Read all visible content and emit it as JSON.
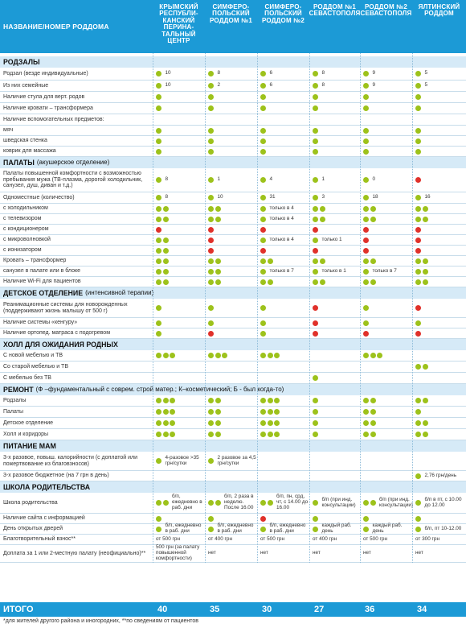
{
  "header": {
    "label": "НАЗВАНИЕ/НОМЕР РОДДОМА",
    "hospitals": [
      "КРЫМСКИЙ РЕСПУБЛИ-КАНСКИЙ ПЕРИНА-ТАЛЬНЫЙ ЦЕНТР",
      "СИМФЕРО-ПОЛЬСКИЙ РОДДОМ №1",
      "СИМФЕРО-ПОЛЬСКИЙ РОДДОМ №2",
      "РОДДОМ №1 СЕВАСТОПОЛЯ",
      "РОДДОМ №2 СЕВАСТОПОЛЯ",
      "ЯЛТИНСКИЙ РОДДОМ"
    ]
  },
  "legend_colors": {
    "yes": "#9dc21b",
    "no": "#e0312a",
    "accent": "#1c9ad6",
    "section_bg": "#d6eaf7"
  },
  "sections": [
    {
      "title": "РОДЗАЛЫ",
      "sub": "",
      "rows": [
        {
          "label": "Родзал (везде индивидуальные)",
          "cells": [
            [
              "g",
              "10"
            ],
            [
              "g",
              "8"
            ],
            [
              "g",
              "6"
            ],
            [
              "g",
              "8"
            ],
            [
              "g",
              "9"
            ],
            [
              "g",
              "5"
            ]
          ]
        },
        {
          "label": "Из них семейные",
          "cells": [
            [
              "g",
              "10"
            ],
            [
              "g",
              "2"
            ],
            [
              "g",
              "6"
            ],
            [
              "g",
              "8"
            ],
            [
              "g",
              "9"
            ],
            [
              "g",
              "5"
            ]
          ]
        },
        {
          "label": "Наличие стула для верт. родов",
          "cells": [
            [
              "g",
              ""
            ],
            [
              "g",
              ""
            ],
            [
              "g",
              ""
            ],
            [
              "g",
              ""
            ],
            [
              "g",
              ""
            ],
            [
              "g",
              ""
            ]
          ]
        },
        {
          "label": "Наличие кровати – трансформера",
          "cells": [
            [
              "g",
              ""
            ],
            [
              "g",
              ""
            ],
            [
              "g",
              ""
            ],
            [
              "g",
              ""
            ],
            [
              "g",
              ""
            ],
            [
              "g",
              ""
            ]
          ]
        },
        {
          "label": "Наличие вспомогательных предметов:",
          "cells": [
            [
              "",
              ""
            ],
            [
              "",
              ""
            ],
            [
              "",
              ""
            ],
            [
              "",
              ""
            ],
            [
              "",
              ""
            ],
            [
              "",
              ""
            ]
          ]
        },
        {
          "label": "мяч",
          "cells": [
            [
              "g",
              ""
            ],
            [
              "g",
              ""
            ],
            [
              "g",
              ""
            ],
            [
              "g",
              ""
            ],
            [
              "g",
              ""
            ],
            [
              "g",
              ""
            ]
          ]
        },
        {
          "label": "шведская стенка",
          "cells": [
            [
              "g",
              ""
            ],
            [
              "g",
              ""
            ],
            [
              "g",
              ""
            ],
            [
              "g",
              ""
            ],
            [
              "g",
              ""
            ],
            [
              "g",
              ""
            ]
          ]
        },
        {
          "label": "коврик для массажа",
          "cells": [
            [
              "g",
              ""
            ],
            [
              "g",
              ""
            ],
            [
              "g",
              ""
            ],
            [
              "g",
              ""
            ],
            [
              "g",
              ""
            ],
            [
              "g",
              ""
            ]
          ]
        }
      ]
    },
    {
      "title": "ПАЛАТЫ",
      "sub": "(акушерское отделение)",
      "rows": [
        {
          "label": "Палаты повышенной комфортности с возможностью пребывания мужа (ТВ-плазма, дорогой холодильник, санузел, душ, диван и т.д.)",
          "cells": [
            [
              "g",
              "8"
            ],
            [
              "g",
              "1"
            ],
            [
              "g",
              "4"
            ],
            [
              "g",
              "1"
            ],
            [
              "g",
              "0"
            ],
            [
              "r",
              ""
            ]
          ]
        },
        {
          "label": "Одноместные (количество)",
          "cells": [
            [
              "g",
              "8"
            ],
            [
              "g",
              "10"
            ],
            [
              "g",
              "31"
            ],
            [
              "g",
              "3"
            ],
            [
              "g",
              "18"
            ],
            [
              "g",
              "16"
            ]
          ]
        },
        {
          "label": "с холодильником",
          "cells": [
            [
              "gg",
              ""
            ],
            [
              "gg",
              ""
            ],
            [
              "g",
              "только в 4"
            ],
            [
              "gg",
              ""
            ],
            [
              "gg",
              ""
            ],
            [
              "gg",
              ""
            ]
          ]
        },
        {
          "label": "с телевизором",
          "cells": [
            [
              "gg",
              ""
            ],
            [
              "gg",
              ""
            ],
            [
              "g",
              "только в 4"
            ],
            [
              "gg",
              ""
            ],
            [
              "gg",
              ""
            ],
            [
              "gg",
              ""
            ]
          ]
        },
        {
          "label": "с кондиционером",
          "cells": [
            [
              "r",
              ""
            ],
            [
              "r",
              ""
            ],
            [
              "r",
              ""
            ],
            [
              "r",
              ""
            ],
            [
              "r",
              ""
            ],
            [
              "r",
              ""
            ]
          ]
        },
        {
          "label": "с микроволновкой",
          "cells": [
            [
              "gg",
              ""
            ],
            [
              "r",
              ""
            ],
            [
              "g",
              "только в 4"
            ],
            [
              "g",
              "только 1"
            ],
            [
              "r",
              ""
            ],
            [
              "r",
              ""
            ]
          ]
        },
        {
          "label": "с ионизатором",
          "cells": [
            [
              "gg",
              ""
            ],
            [
              "r",
              ""
            ],
            [
              "r",
              ""
            ],
            [
              "r",
              ""
            ],
            [
              "r",
              ""
            ],
            [
              "r",
              ""
            ]
          ]
        },
        {
          "label": "Кровать – трансформер",
          "cells": [
            [
              "gg",
              ""
            ],
            [
              "gg",
              ""
            ],
            [
              "gg",
              ""
            ],
            [
              "gg",
              ""
            ],
            [
              "gg",
              ""
            ],
            [
              "gg",
              ""
            ]
          ]
        },
        {
          "label": "санузел в палате или в блоке",
          "cells": [
            [
              "gg",
              ""
            ],
            [
              "gg",
              ""
            ],
            [
              "g",
              "только в 7"
            ],
            [
              "g",
              "только в 1"
            ],
            [
              "g",
              "только в 7"
            ],
            [
              "gg",
              ""
            ]
          ]
        },
        {
          "label": "Наличие Wi-Fi для пациентов",
          "cells": [
            [
              "gg",
              ""
            ],
            [
              "gg",
              ""
            ],
            [
              "gg",
              ""
            ],
            [
              "gg",
              ""
            ],
            [
              "gg",
              ""
            ],
            [
              "gg",
              ""
            ]
          ]
        }
      ]
    },
    {
      "title": "ДЕТСКОЕ ОТДЕЛЕНИЕ",
      "sub": "(интенсивной терапии)",
      "rows": [
        {
          "label": "Реанимационные системы для новорожденных (поддерживают жизнь малышу от 500 г)",
          "cells": [
            [
              "g",
              ""
            ],
            [
              "g",
              ""
            ],
            [
              "g",
              ""
            ],
            [
              "r",
              ""
            ],
            [
              "g",
              ""
            ],
            [
              "r",
              ""
            ]
          ]
        },
        {
          "label": "Наличие системы «кенгуру»",
          "cells": [
            [
              "g",
              ""
            ],
            [
              "g",
              ""
            ],
            [
              "g",
              ""
            ],
            [
              "r",
              ""
            ],
            [
              "g",
              ""
            ],
            [
              "g",
              ""
            ]
          ]
        },
        {
          "label": "Наличие ортопед. матраса с подогревом",
          "cells": [
            [
              "g",
              ""
            ],
            [
              "r",
              ""
            ],
            [
              "g",
              ""
            ],
            [
              "r",
              ""
            ],
            [
              "r",
              ""
            ],
            [
              "r",
              ""
            ]
          ]
        }
      ]
    },
    {
      "title": "ХОЛЛ ДЛЯ ОЖИДАНИЯ РОДНЫХ",
      "sub": "",
      "rows": [
        {
          "label": "С новой мебелью и ТВ",
          "cells": [
            [
              "ggg",
              ""
            ],
            [
              "ggg",
              ""
            ],
            [
              "ggg",
              ""
            ],
            [
              "",
              ""
            ],
            [
              "ggg",
              ""
            ],
            [
              "",
              ""
            ]
          ]
        },
        {
          "label": "Со старой мебелью и ТВ",
          "cells": [
            [
              "",
              ""
            ],
            [
              "",
              ""
            ],
            [
              "",
              ""
            ],
            [
              "",
              ""
            ],
            [
              "",
              ""
            ],
            [
              "gg",
              ""
            ]
          ]
        },
        {
          "label": "С мебелью без ТВ",
          "cells": [
            [
              "",
              ""
            ],
            [
              "",
              ""
            ],
            [
              "",
              ""
            ],
            [
              "g",
              ""
            ],
            [
              "",
              ""
            ],
            [
              "",
              ""
            ]
          ]
        }
      ]
    },
    {
      "title": "РЕМОНТ",
      "sub": "(Ф –фундаментальный с соврем. строй матер.; К–косметический; Б - был когда-то)",
      "rows": [
        {
          "label": "Родзалы",
          "cells": [
            [
              "ggg",
              ""
            ],
            [
              "gg",
              ""
            ],
            [
              "ggg",
              ""
            ],
            [
              "g",
              ""
            ],
            [
              "gg",
              ""
            ],
            [
              "gg",
              ""
            ]
          ]
        },
        {
          "label": "Палаты",
          "cells": [
            [
              "ggg",
              ""
            ],
            [
              "gg",
              ""
            ],
            [
              "ggg",
              ""
            ],
            [
              "g",
              ""
            ],
            [
              "gg",
              ""
            ],
            [
              "g",
              ""
            ]
          ]
        },
        {
          "label": "Детское отделение",
          "cells": [
            [
              "ggg",
              ""
            ],
            [
              "gg",
              ""
            ],
            [
              "ggg",
              ""
            ],
            [
              "g",
              ""
            ],
            [
              "gg",
              ""
            ],
            [
              "gg",
              ""
            ]
          ]
        },
        {
          "label": "Холл и коридоры",
          "cells": [
            [
              "ggg",
              ""
            ],
            [
              "gg",
              ""
            ],
            [
              "ggg",
              ""
            ],
            [
              "g",
              ""
            ],
            [
              "gg",
              ""
            ],
            [
              "gg",
              ""
            ]
          ]
        }
      ]
    },
    {
      "title": "ПИТАНИЕ МАМ",
      "sub": "",
      "rows": [
        {
          "label": "3-х разовое, повыш. калорийности (с доплатой или пожертвование из благовзносов)",
          "cells": [
            [
              "g",
              "4-разовое >35 грн/сутки"
            ],
            [
              "g",
              "2 разовое за 4,5 грн/сутки"
            ],
            [
              "",
              ""
            ],
            [
              "",
              ""
            ],
            [
              "",
              ""
            ],
            [
              "",
              ""
            ]
          ]
        },
        {
          "label": "3-х разовое бюджетное (на 7 грн в день)",
          "cells": [
            [
              "",
              ""
            ],
            [
              "",
              ""
            ],
            [
              "",
              ""
            ],
            [
              "",
              ""
            ],
            [
              "",
              ""
            ],
            [
              "g",
              "2,76 грн/день"
            ]
          ]
        }
      ]
    },
    {
      "title": "ШКОЛА РОДИТЕЛЬСТВА",
      "sub": "",
      "rows": [
        {
          "label": "Школа родительства",
          "cells": [
            [
              "gg",
              "б/п, ежедневно в раб. дни"
            ],
            [
              "gg",
              "б/п, 2 раза в неделю. После 16.00"
            ],
            [
              "gg",
              "б/п, пн, срд, чт, с 14.00 до 16.00"
            ],
            [
              "g",
              "б/п (при инд. консультации)"
            ],
            [
              "gg",
              "б/п (при инд. консультации)"
            ],
            [
              "g",
              "б/п в пт, с 10.00 до 12.00"
            ]
          ]
        },
        {
          "label": "Наличие сайта с информацией",
          "cells": [
            [
              "g",
              ""
            ],
            [
              "g",
              ""
            ],
            [
              "r",
              ""
            ],
            [
              "g",
              ""
            ],
            [
              "g",
              ""
            ],
            [
              "g",
              ""
            ]
          ]
        },
        {
          "label": "День открытых дверей",
          "cells": [
            [
              "g",
              "б/п, ежедневно в раб. дни"
            ],
            [
              "g",
              "б/п, ежедневно в раб. дни"
            ],
            [
              "g",
              "б/п, ежедневно в раб. дни"
            ],
            [
              "g",
              "каждый раб. день"
            ],
            [
              "g",
              "каждый раб. день"
            ],
            [
              "g",
              "б/п, пт 10-12.00"
            ]
          ]
        },
        {
          "label": "Благотворительный взнос**",
          "cells": [
            [
              "",
              "от 500 грн"
            ],
            [
              "",
              "от 400 грн"
            ],
            [
              "",
              "от 500 грн"
            ],
            [
              "",
              "от 400 грн"
            ],
            [
              "",
              "от 500 грн"
            ],
            [
              "",
              "от 300 грн"
            ]
          ]
        },
        {
          "label": "Доплата за 1 или 2-местную палату (неофициально)**",
          "cells": [
            [
              "",
              "500 грн (за палату повышенной комфортности)"
            ],
            [
              "",
              "нет"
            ],
            [
              "",
              "нет"
            ],
            [
              "",
              "нет"
            ],
            [
              "",
              "нет"
            ],
            [
              "",
              "нет"
            ]
          ]
        }
      ]
    }
  ],
  "totals": {
    "label": "ИТОГО",
    "values": [
      "40",
      "35",
      "30",
      "27",
      "36",
      "34"
    ]
  },
  "footnote": "*для жителей другого района и иногородних, **по сведениям от пациентов"
}
